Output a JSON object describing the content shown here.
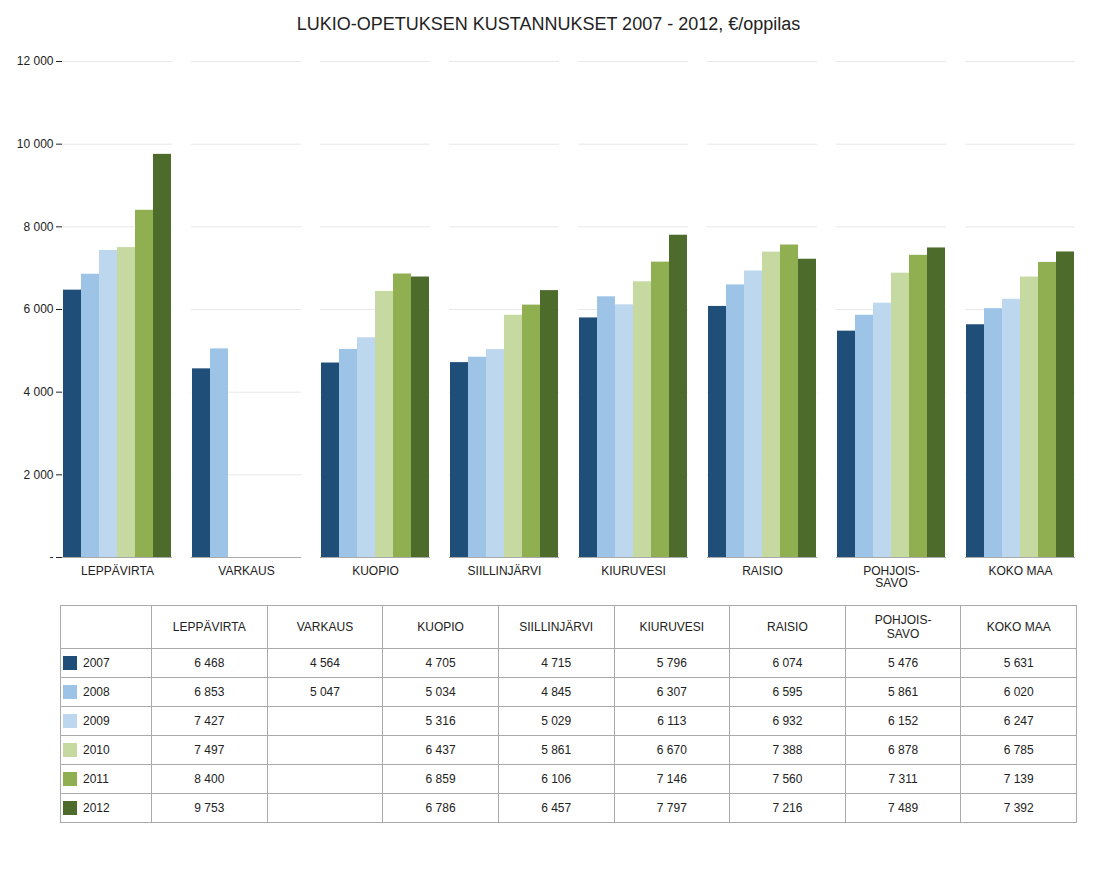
{
  "chart_data": {
    "type": "bar",
    "title": "LUKIO-OPETUKSEN KUSTANNUKSET 2007 - 2012, €/oppilas",
    "categories": [
      "LEPPÄVIRTA",
      "VARKAUS",
      "KUOPIO",
      "SIILLINJÄRVI",
      "KIURUVESI",
      "RAISIO",
      "POHJOIS-\nSAVO",
      "KOKO MAA"
    ],
    "series": [
      {
        "name": "2007",
        "color": "#1F4E79",
        "values": [
          6468,
          4564,
          4705,
          4715,
          5796,
          6074,
          5476,
          5631
        ],
        "value_labels": [
          "6 468",
          "4 564",
          "4 705",
          "4 715",
          "5 796",
          "6 074",
          "5 476",
          "5 631"
        ]
      },
      {
        "name": "2008",
        "color": "#9DC3E6",
        "values": [
          6853,
          5047,
          5034,
          4845,
          6307,
          6595,
          5861,
          6020
        ],
        "value_labels": [
          "6 853",
          "5 047",
          "5 034",
          "4 845",
          "6 307",
          "6 595",
          "5 861",
          "6 020"
        ]
      },
      {
        "name": "2009",
        "color": "#BDD7EE",
        "values": [
          7427,
          null,
          5316,
          5029,
          6113,
          6932,
          6152,
          6247
        ],
        "value_labels": [
          "7 427",
          null,
          "5 316",
          "5 029",
          "6 113",
          "6 932",
          "6 152",
          "6 247"
        ]
      },
      {
        "name": "2010",
        "color": "#C5D9A0",
        "values": [
          7497,
          null,
          6437,
          5861,
          6670,
          7388,
          6878,
          6785
        ],
        "value_labels": [
          "7 497",
          null,
          "6 437",
          "5 861",
          "6 670",
          "7 388",
          "6 878",
          "6 785"
        ]
      },
      {
        "name": "2011",
        "color": "#8FAF50",
        "values": [
          8400,
          null,
          6859,
          6106,
          7146,
          7560,
          7311,
          7139
        ],
        "value_labels": [
          "8 400",
          null,
          "6 859",
          "6 106",
          "7 146",
          "7 560",
          "7 311",
          "7 139"
        ]
      },
      {
        "name": "2012",
        "color": "#4D6B2A",
        "values": [
          9753,
          null,
          6786,
          6457,
          7797,
          7216,
          7489,
          7392
        ],
        "value_labels": [
          "9 753",
          null,
          "6 786",
          "6 457",
          "7 797",
          "7 216",
          "7 489",
          "7 392"
        ]
      }
    ],
    "ylim": [
      0,
      12000
    ],
    "yticks": [
      {
        "value": 0,
        "label": "-"
      },
      {
        "value": 2000,
        "label": "2 000"
      },
      {
        "value": 4000,
        "label": "4 000"
      },
      {
        "value": 6000,
        "label": "6 000"
      },
      {
        "value": 8000,
        "label": "8 000"
      },
      {
        "value": 10000,
        "label": "10 000"
      },
      {
        "value": 12000,
        "label": "12 000"
      }
    ],
    "grid": true,
    "legend": "bottom"
  }
}
